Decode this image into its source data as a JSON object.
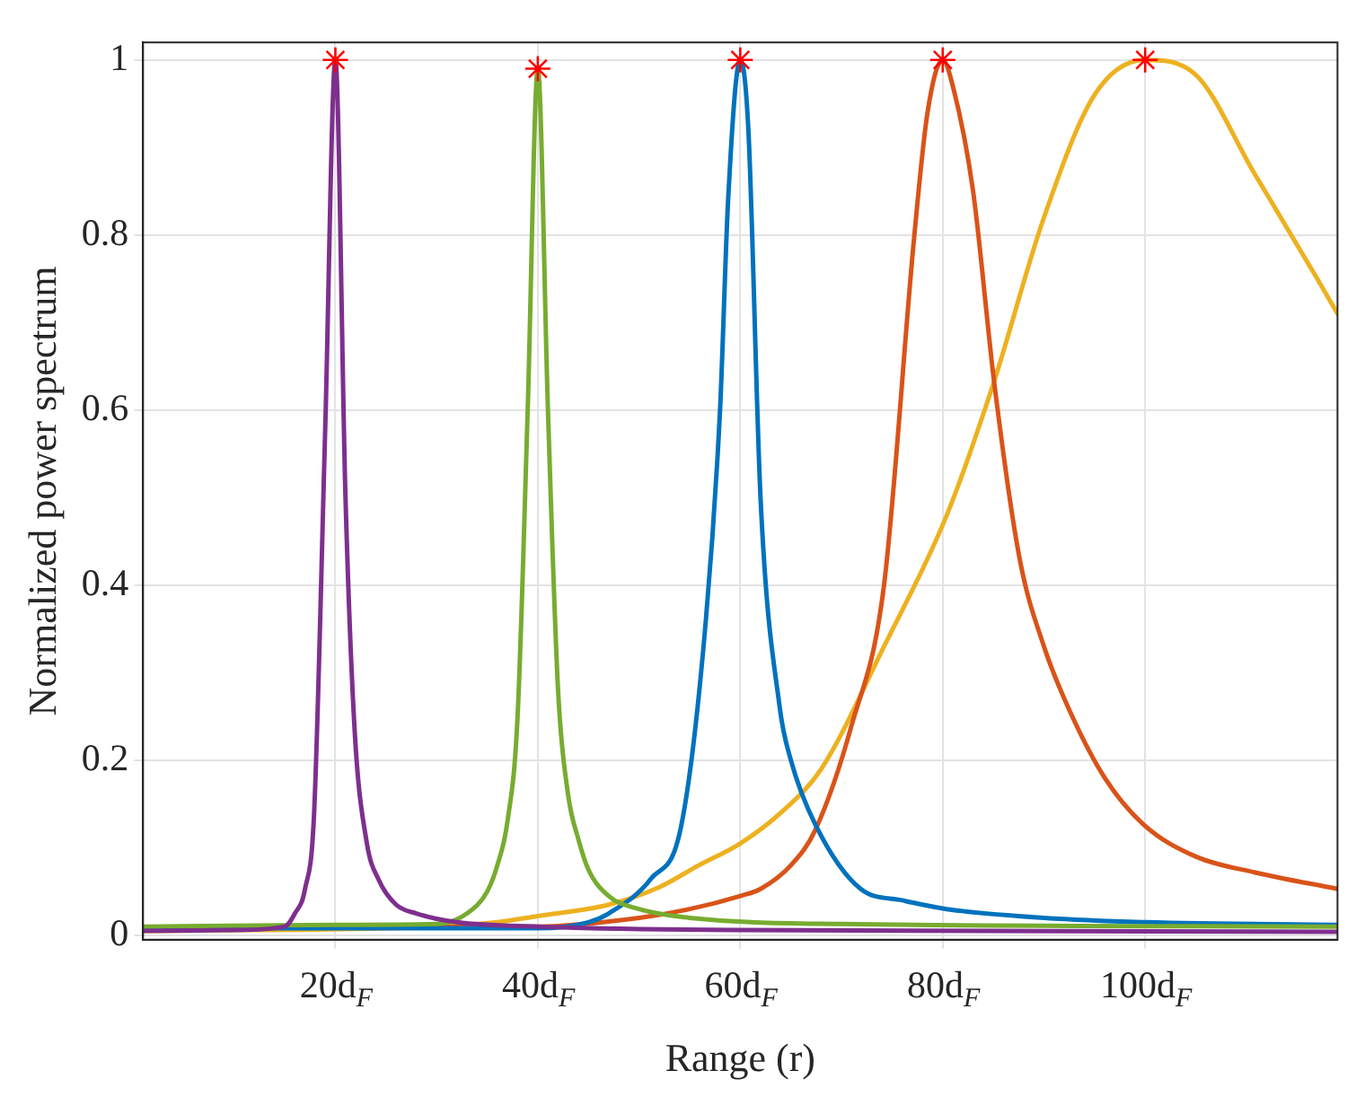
{
  "chart_data": {
    "type": "line",
    "xlabel": "Range (r)",
    "ylabel": "Normalized power spectrum",
    "xlim": [
      1,
      119
    ],
    "ylim": [
      -0.005,
      1.02
    ],
    "xticks": [
      {
        "value": 20,
        "label": "20d$_{F}$"
      },
      {
        "value": 40,
        "label": "40d$_{F}$"
      },
      {
        "value": 60,
        "label": "60d$_{F}$"
      },
      {
        "value": 80,
        "label": "80d$_{F}$"
      },
      {
        "value": 100,
        "label": "100d$_{F}$"
      }
    ],
    "yticks": [
      0,
      0.2,
      0.4,
      0.6,
      0.8,
      1
    ],
    "grid": true,
    "marker": "none",
    "line_style": "solid",
    "series": [
      {
        "color": "#7e2f8e",
        "x": [
          1,
          10,
          15,
          16,
          17,
          17.9,
          19,
          20,
          21,
          21.9,
          23.1,
          24.3,
          26,
          28,
          32,
          40,
          60,
          119
        ],
        "values": [
          0.005,
          0.006,
          0.01,
          0.025,
          0.053,
          0.14,
          0.58,
          1.0,
          0.5,
          0.235,
          0.106,
          0.063,
          0.035,
          0.025,
          0.015,
          0.01,
          0.006,
          0.004
        ]
      },
      {
        "color": "#77ac30",
        "x": [
          1,
          20,
          30,
          33,
          35,
          36,
          37,
          38,
          39,
          40,
          41,
          42,
          43,
          44,
          45,
          47,
          50,
          55,
          70,
          119
        ],
        "values": [
          0.01,
          0.012,
          0.013,
          0.025,
          0.05,
          0.08,
          0.13,
          0.25,
          0.6,
          0.99,
          0.6,
          0.28,
          0.16,
          0.11,
          0.075,
          0.045,
          0.03,
          0.02,
          0.013,
          0.01
        ]
      },
      {
        "color": "#0072bd",
        "x": [
          1,
          40,
          45,
          47,
          51.2,
          54.2,
          56.6,
          58,
          58.8,
          60,
          60.8,
          62,
          63.9,
          65,
          67.4,
          71.9,
          76,
          80.4,
          90,
          100,
          119
        ],
        "values": [
          0.008,
          0.008,
          0.015,
          0.025,
          0.065,
          0.127,
          0.36,
          0.6,
          0.84,
          1.0,
          0.92,
          0.5,
          0.26,
          0.2,
          0.127,
          0.053,
          0.04,
          0.03,
          0.02,
          0.015,
          0.012
        ]
      },
      {
        "color": "#d95319",
        "x": [
          1,
          40,
          50,
          55,
          60,
          62,
          65,
          67.4,
          71,
          74.2,
          77.2,
          78.5,
          80,
          81,
          83,
          85.1,
          87.6,
          90,
          92.6,
          96,
          99.8,
          105,
          110.8,
          119
        ],
        "values": [
          0.008,
          0.01,
          0.02,
          0.03,
          0.045,
          0.053,
          0.08,
          0.12,
          0.24,
          0.4,
          0.8,
          0.94,
          1.0,
          0.97,
          0.85,
          0.63,
          0.43,
          0.33,
          0.255,
          0.18,
          0.127,
          0.09,
          0.072,
          0.053
        ]
      },
      {
        "color": "#edb120",
        "x": [
          1,
          30,
          36,
          40,
          47,
          52,
          55.9,
          60,
          64,
          68,
          74.2,
          80.4,
          85,
          90,
          95,
          100,
          104.8,
          110.8,
          117,
          119
        ],
        "values": [
          0.005,
          0.01,
          0.015,
          0.022,
          0.035,
          0.055,
          0.08,
          0.105,
          0.14,
          0.19,
          0.33,
          0.48,
          0.63,
          0.82,
          0.96,
          1.0,
          0.985,
          0.87,
          0.75,
          0.71
        ]
      },
      {
        "type": "scatter",
        "marker": "cross",
        "color": "#ff0000",
        "x": [
          20,
          40,
          60,
          80,
          100
        ],
        "values": [
          1.0,
          0.99,
          1.0,
          1.0,
          1.0
        ]
      }
    ]
  }
}
